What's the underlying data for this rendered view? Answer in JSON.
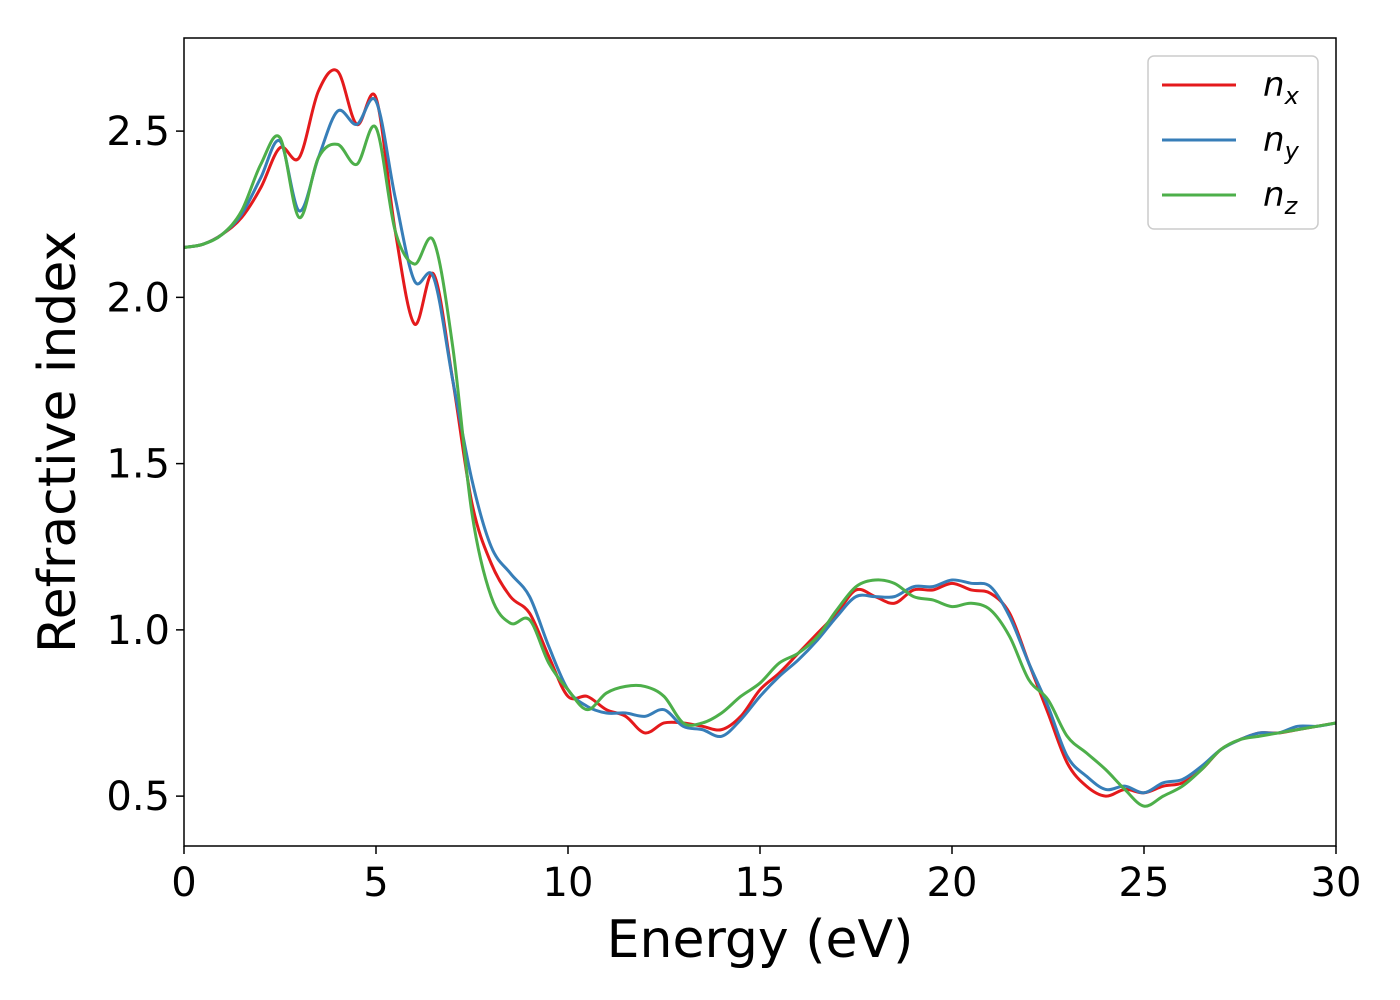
{
  "chart_data": {
    "type": "line",
    "xlabel": "Energy (eV)",
    "ylabel": "Refractive index",
    "xlim": [
      0,
      30
    ],
    "ylim": [
      0.35,
      2.78
    ],
    "xticks": [
      "0",
      "5",
      "10",
      "15",
      "20",
      "25",
      "30"
    ],
    "yticks": [
      "0.5",
      "1.0",
      "1.5",
      "2.0",
      "2.5"
    ],
    "grid": false,
    "legend_position": "top-right",
    "series": [
      {
        "name": "n",
        "subscript": "x",
        "color": "#e41a1c",
        "x": [
          0,
          0.5,
          1,
          1.5,
          2,
          2.5,
          3,
          3.5,
          4,
          4.5,
          5,
          5.5,
          6,
          6.5,
          7,
          7.5,
          8,
          8.5,
          9,
          9.5,
          10,
          10.5,
          11,
          11.5,
          12,
          12.5,
          13,
          13.5,
          14,
          14.5,
          15,
          15.5,
          16,
          16.5,
          17,
          17.5,
          18,
          18.5,
          19,
          19.5,
          20,
          20.5,
          21,
          21.5,
          22,
          22.5,
          23,
          23.5,
          24,
          24.5,
          25,
          25.5,
          26,
          26.5,
          27,
          27.5,
          28,
          28.5,
          29,
          29.5,
          30
        ],
        "y": [
          2.15,
          2.16,
          2.19,
          2.24,
          2.33,
          2.45,
          2.42,
          2.62,
          2.68,
          2.52,
          2.6,
          2.2,
          1.92,
          2.07,
          1.75,
          1.38,
          1.2,
          1.1,
          1.05,
          0.92,
          0.8,
          0.8,
          0.76,
          0.74,
          0.69,
          0.72,
          0.72,
          0.71,
          0.7,
          0.74,
          0.82,
          0.87,
          0.93,
          0.99,
          1.05,
          1.12,
          1.1,
          1.08,
          1.12,
          1.12,
          1.14,
          1.12,
          1.11,
          1.05,
          0.9,
          0.75,
          0.6,
          0.53,
          0.5,
          0.52,
          0.51,
          0.53,
          0.54,
          0.58,
          0.64,
          0.67,
          0.69,
          0.69,
          0.7,
          0.71,
          0.72
        ]
      },
      {
        "name": "n",
        "subscript": "y",
        "color": "#377eb8",
        "x": [
          0,
          0.5,
          1,
          1.5,
          2,
          2.5,
          3,
          3.5,
          4,
          4.5,
          5,
          5.5,
          6,
          6.5,
          7,
          7.5,
          8,
          8.5,
          9,
          9.5,
          10,
          10.5,
          11,
          11.5,
          12,
          12.5,
          13,
          13.5,
          14,
          14.5,
          15,
          15.5,
          16,
          16.5,
          17,
          17.5,
          18,
          18.5,
          19,
          19.5,
          20,
          20.5,
          21,
          21.5,
          22,
          22.5,
          23,
          23.5,
          24,
          24.5,
          25,
          25.5,
          26,
          26.5,
          27,
          27.5,
          28,
          28.5,
          29,
          29.5,
          30
        ],
        "y": [
          2.15,
          2.16,
          2.19,
          2.25,
          2.36,
          2.47,
          2.26,
          2.42,
          2.56,
          2.52,
          2.59,
          2.3,
          2.05,
          2.06,
          1.75,
          1.45,
          1.25,
          1.17,
          1.1,
          0.95,
          0.82,
          0.77,
          0.75,
          0.75,
          0.74,
          0.76,
          0.71,
          0.7,
          0.68,
          0.73,
          0.8,
          0.86,
          0.91,
          0.97,
          1.04,
          1.1,
          1.1,
          1.1,
          1.13,
          1.13,
          1.15,
          1.14,
          1.13,
          1.04,
          0.9,
          0.77,
          0.62,
          0.56,
          0.52,
          0.53,
          0.51,
          0.54,
          0.55,
          0.59,
          0.64,
          0.67,
          0.69,
          0.69,
          0.71,
          0.71,
          0.72
        ]
      },
      {
        "name": "n",
        "subscript": "z",
        "color": "#4daf4a",
        "x": [
          0,
          0.5,
          1,
          1.5,
          2,
          2.5,
          3,
          3.5,
          4,
          4.5,
          5,
          5.5,
          6,
          6.5,
          7,
          7.5,
          8,
          8.5,
          9,
          9.5,
          10,
          10.5,
          11,
          11.5,
          12,
          12.5,
          13,
          13.5,
          14,
          14.5,
          15,
          15.5,
          16,
          16.5,
          17,
          17.5,
          18,
          18.5,
          19,
          19.5,
          20,
          20.5,
          21,
          21.5,
          22,
          22.5,
          23,
          23.5,
          24,
          24.5,
          25,
          25.5,
          26,
          26.5,
          27,
          27.5,
          28,
          28.5,
          29,
          29.5,
          30
        ],
        "y": [
          2.15,
          2.16,
          2.19,
          2.26,
          2.4,
          2.48,
          2.24,
          2.42,
          2.46,
          2.4,
          2.51,
          2.2,
          2.1,
          2.17,
          1.85,
          1.35,
          1.1,
          1.02,
          1.03,
          0.9,
          0.82,
          0.76,
          0.81,
          0.83,
          0.83,
          0.8,
          0.72,
          0.72,
          0.75,
          0.8,
          0.84,
          0.9,
          0.93,
          0.98,
          1.06,
          1.13,
          1.15,
          1.14,
          1.1,
          1.09,
          1.07,
          1.08,
          1.06,
          0.98,
          0.85,
          0.79,
          0.68,
          0.63,
          0.58,
          0.52,
          0.47,
          0.5,
          0.53,
          0.58,
          0.64,
          0.67,
          0.68,
          0.69,
          0.7,
          0.71,
          0.72
        ]
      }
    ]
  }
}
